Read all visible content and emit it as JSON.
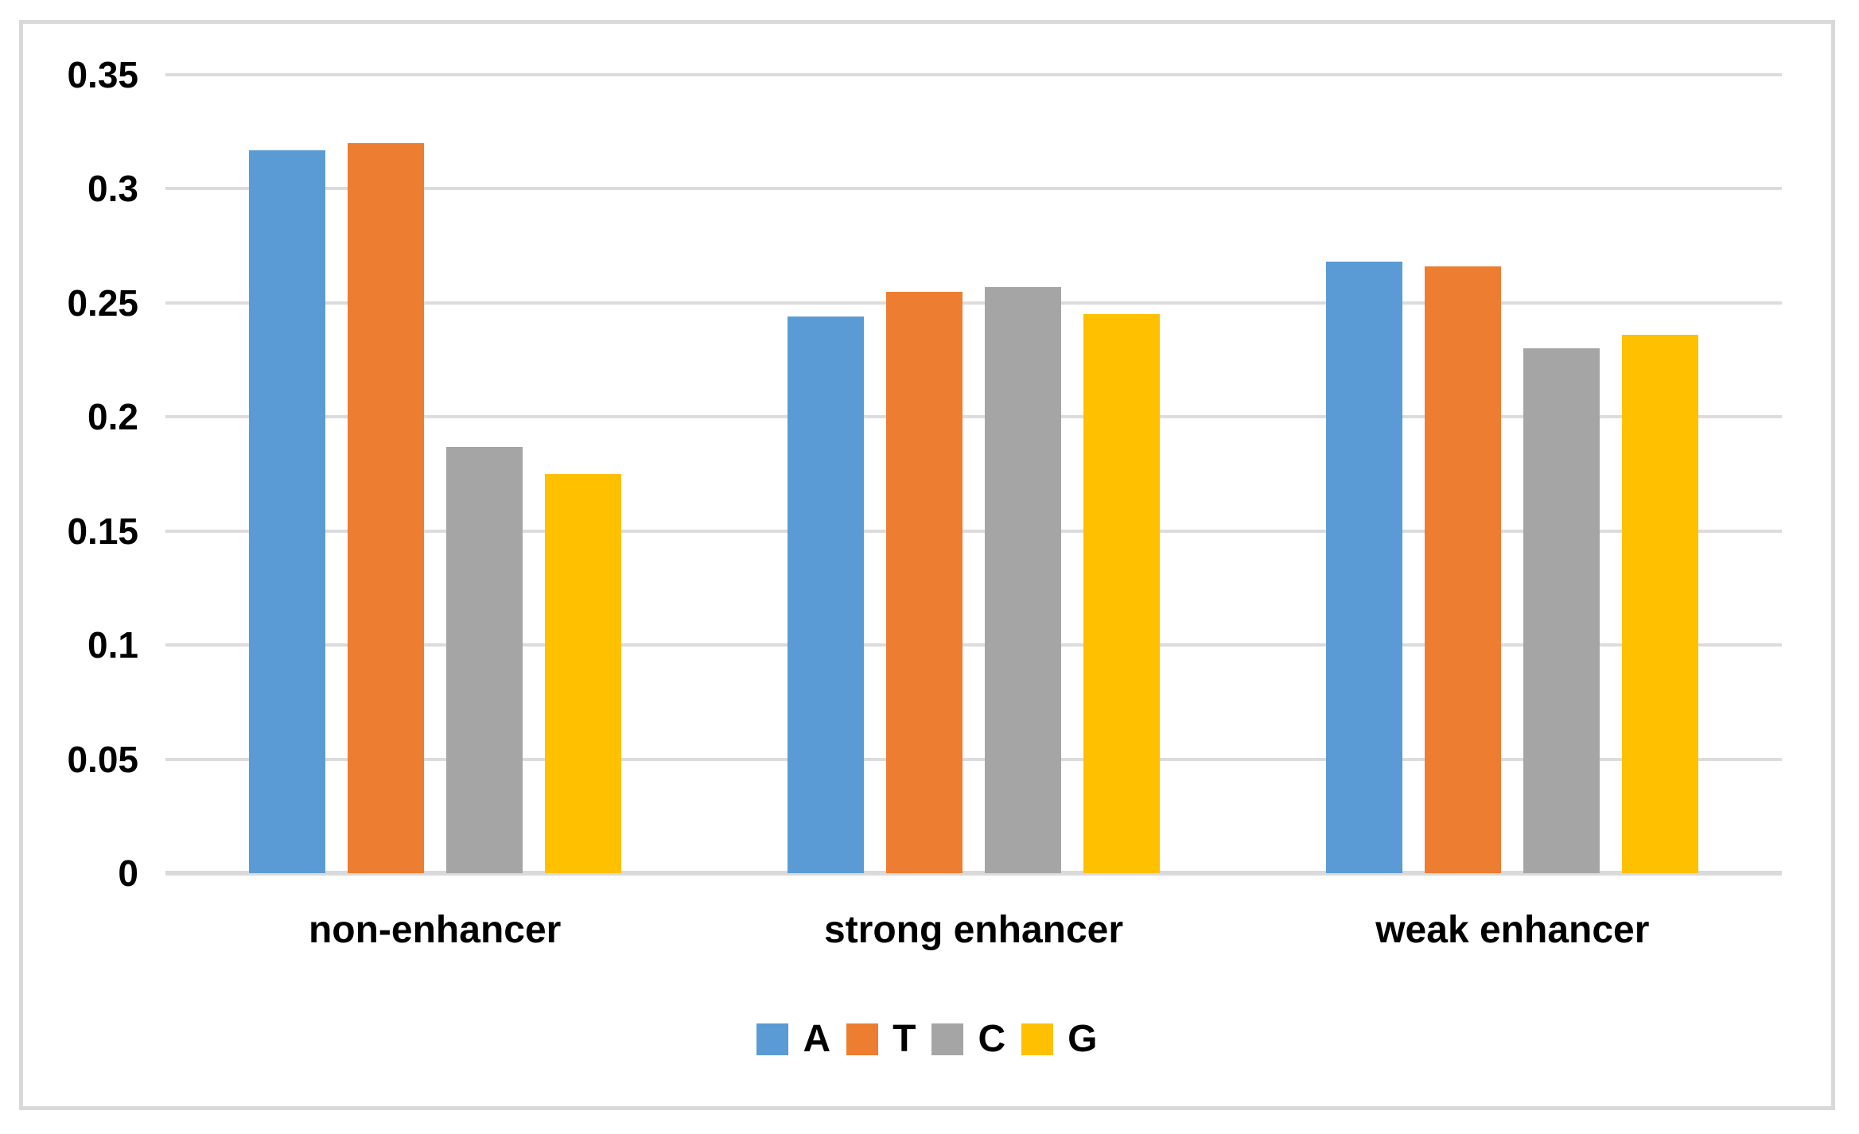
{
  "chart_data": {
    "type": "bar",
    "title": "",
    "xlabel": "",
    "ylabel": "",
    "categories": [
      "non-enhancer",
      "strong enhancer",
      "weak enhancer"
    ],
    "series": [
      {
        "name": "A",
        "color": "#5B9BD5",
        "values": [
          0.317,
          0.244,
          0.268
        ]
      },
      {
        "name": "T",
        "color": "#ED7D31",
        "values": [
          0.32,
          0.255,
          0.266
        ]
      },
      {
        "name": "C",
        "color": "#A5A5A5",
        "values": [
          0.187,
          0.257,
          0.23
        ]
      },
      {
        "name": "G",
        "color": "#FFC000",
        "values": [
          0.175,
          0.245,
          0.236
        ]
      }
    ],
    "ylim": [
      0,
      0.35
    ],
    "y_ticks": [
      0,
      0.05,
      0.1,
      0.15,
      0.2,
      0.25,
      0.3,
      0.35
    ],
    "y_tick_labels_top_to_bottom": [
      "0.35",
      "0.3",
      "0.25",
      "0.2",
      "0.15",
      "0.1",
      "0.05",
      "0"
    ],
    "grid": true,
    "legend": {
      "position": "bottom",
      "entries": [
        "A",
        "T",
        "C",
        "G"
      ]
    }
  },
  "styles": {
    "background": "#FFFFFF",
    "frame_border_color": "#D9D9D9",
    "grid_color": "#DCDCDC",
    "axis_line_color": "#DADADA",
    "text_color": "#000000"
  }
}
